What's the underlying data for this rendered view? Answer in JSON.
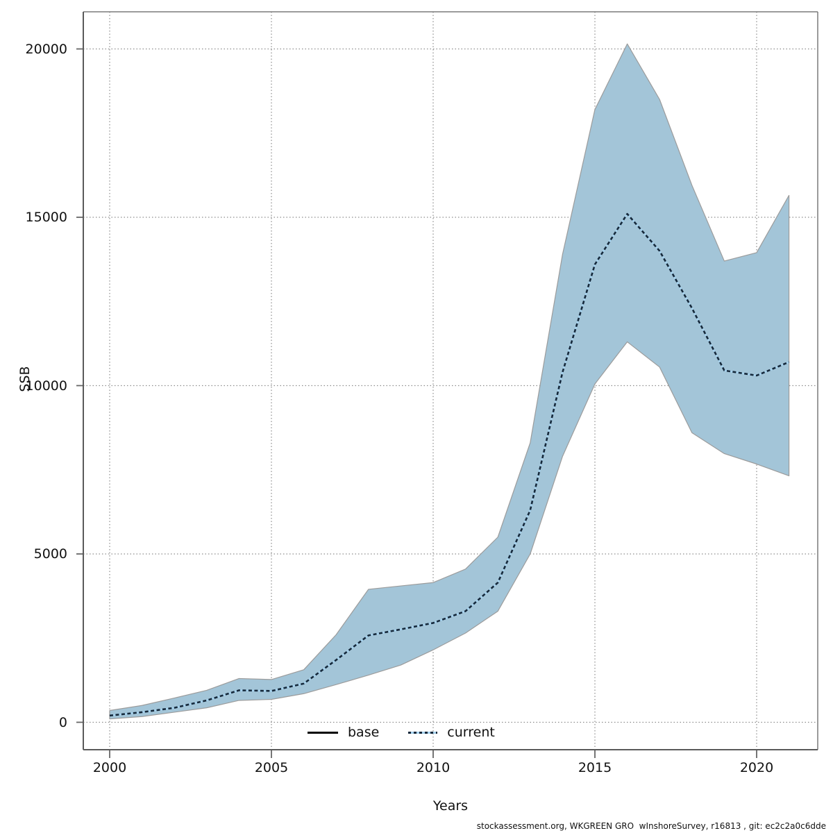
{
  "axes": {
    "x_title": "Years",
    "y_title": "SSB",
    "x_tick_labels": [
      "2000",
      "2005",
      "2010",
      "2015",
      "2020"
    ],
    "y_tick_labels": [
      "0",
      "5000",
      "10000",
      "15000",
      "20000"
    ]
  },
  "legend": {
    "items": [
      {
        "label": "base",
        "line_style": "solid",
        "color": "#000000"
      },
      {
        "label": "current",
        "line_style": "dotted",
        "color": "#16293b",
        "underlay_color": "#a6d2ee"
      }
    ]
  },
  "footer": {
    "text": "stockassessment.org, WKGREEN GRO  wInshoreSurvey, r16813 , git: ec2c2a0c6dde"
  },
  "colors": {
    "band_fill": "#a3c5d8",
    "band_edge": "#9b9b9b",
    "current_dash": "#16293b",
    "current_underlay": "#a6d2ee",
    "base_line": "#000000",
    "grid": "#8c8c8c",
    "box_border": "#7a7a7a",
    "tick": "#666666",
    "background": "#ffffff"
  },
  "chart_data": {
    "type": "line",
    "title": "",
    "xlabel": "Years",
    "ylabel": "SSB",
    "grid": "dotted",
    "legend_position": "bottom-center-inside",
    "xlim": [
      1999.2,
      2021.9
    ],
    "ylim": [
      -800,
      21100
    ],
    "xticks": [
      2000,
      2005,
      2010,
      2015,
      2020
    ],
    "yticks": [
      0,
      5000,
      10000,
      15000,
      20000
    ],
    "x": [
      2000,
      2001,
      2002,
      2003,
      2004,
      2005,
      2006,
      2007,
      2008,
      2009,
      2010,
      2011,
      2012,
      2013,
      2014,
      2015,
      2016,
      2017,
      2018,
      2019,
      2020,
      2021
    ],
    "series": [
      {
        "name": "base",
        "line_style": "solid",
        "color": "#000000",
        "values": [
          200,
          300,
          430,
          650,
          950,
          930,
          1150,
          1850,
          2580,
          2760,
          2950,
          3300,
          4150,
          6300,
          10400,
          13600,
          15100,
          14000,
          12300,
          10450,
          10300,
          10700
        ]
      },
      {
        "name": "current",
        "line_style": "dotted",
        "color": "#16293b",
        "underlay_color": "#a6d2ee",
        "values": [
          200,
          300,
          430,
          650,
          950,
          930,
          1150,
          1850,
          2580,
          2760,
          2950,
          3300,
          4150,
          6300,
          10400,
          13600,
          15100,
          14000,
          12300,
          10450,
          10300,
          10700
        ]
      }
    ],
    "band": {
      "series": "current",
      "fill": "#a3c5d8",
      "edge": "#9b9b9b",
      "lower": [
        100,
        170,
        300,
        430,
        650,
        680,
        850,
        1120,
        1400,
        1700,
        2150,
        2650,
        3300,
        5000,
        7900,
        10050,
        11300,
        10550,
        8600,
        7980,
        7670,
        7320
      ],
      "upper": [
        350,
        500,
        720,
        950,
        1300,
        1270,
        1560,
        2600,
        3950,
        4050,
        4150,
        4550,
        5500,
        8300,
        13900,
        18200,
        20150,
        18500,
        15950,
        13700,
        13950,
        15650
      ]
    }
  }
}
